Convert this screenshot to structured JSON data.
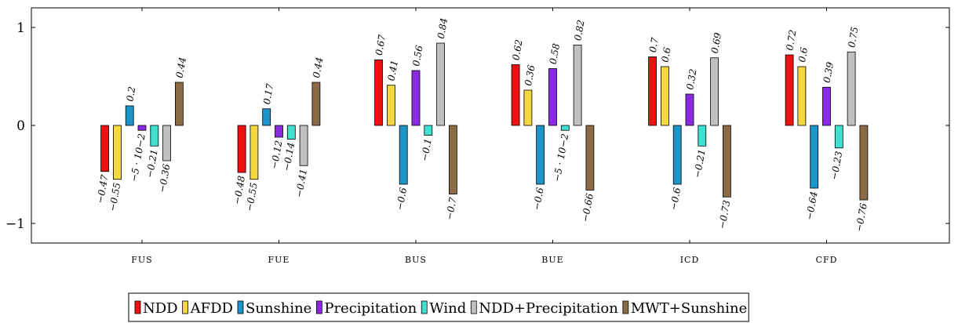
{
  "chart_data": {
    "type": "bar",
    "categories": [
      "FUS",
      "FUE",
      "BUS",
      "BUE",
      "ICD",
      "CFD"
    ],
    "ylim": [
      -1.2,
      1.2
    ],
    "yticks": [
      -1,
      0,
      1
    ],
    "ytick_labels": [
      "−1",
      "0",
      "1"
    ],
    "legend_position": "bottom",
    "series": [
      {
        "name": "NDD",
        "color": "#ee1111",
        "values": [
          -0.47,
          -0.48,
          0.67,
          0.62,
          0.7,
          0.72
        ],
        "labels": [
          "−0.47",
          "−0.48",
          "0.67",
          "0.62",
          "0.7",
          "0.72"
        ]
      },
      {
        "name": "AFDD",
        "color": "#f5d742",
        "values": [
          -0.55,
          -0.55,
          0.41,
          0.36,
          0.6,
          0.6
        ],
        "labels": [
          "−0.55",
          "−0.55",
          "0.41",
          "0.36",
          "0.6",
          "0.6"
        ]
      },
      {
        "name": "Sunshine",
        "color": "#1e95c8",
        "values": [
          0.2,
          0.17,
          -0.6,
          -0.6,
          -0.6,
          -0.64
        ],
        "labels": [
          "0.2",
          "0.17",
          "−0.6",
          "−0.6",
          "−0.6",
          "−0.64"
        ]
      },
      {
        "name": "Precipitation",
        "color": "#8a2be2",
        "values": [
          -0.05,
          -0.12,
          0.56,
          0.58,
          0.32,
          0.39
        ],
        "labels": [
          "−5 · 10−2",
          "−0.12",
          "0.56",
          "0.58",
          "0.32",
          "0.39"
        ]
      },
      {
        "name": "Wind",
        "color": "#40e0d0",
        "values": [
          -0.21,
          -0.14,
          -0.1,
          -0.05,
          -0.21,
          -0.23
        ],
        "labels": [
          "−0.21",
          "−0.14",
          "−0.1",
          "−5 · 10−2",
          "−0.21",
          "−0.23"
        ]
      },
      {
        "name": "NDD+Precipitation",
        "color": "#c0c0c0",
        "values": [
          -0.36,
          -0.41,
          0.84,
          0.82,
          0.69,
          0.75
        ],
        "labels": [
          "−0.36",
          "−0.41",
          "0.84",
          "0.82",
          "0.69",
          "0.75"
        ]
      },
      {
        "name": "MWT+Sunshine",
        "color": "#8b6b45",
        "values": [
          0.44,
          0.44,
          -0.7,
          -0.66,
          -0.73,
          -0.76
        ],
        "labels": [
          "0.44",
          "0.44",
          "−0.7",
          "−0.66",
          "−0.73",
          "−0.76"
        ]
      }
    ]
  }
}
